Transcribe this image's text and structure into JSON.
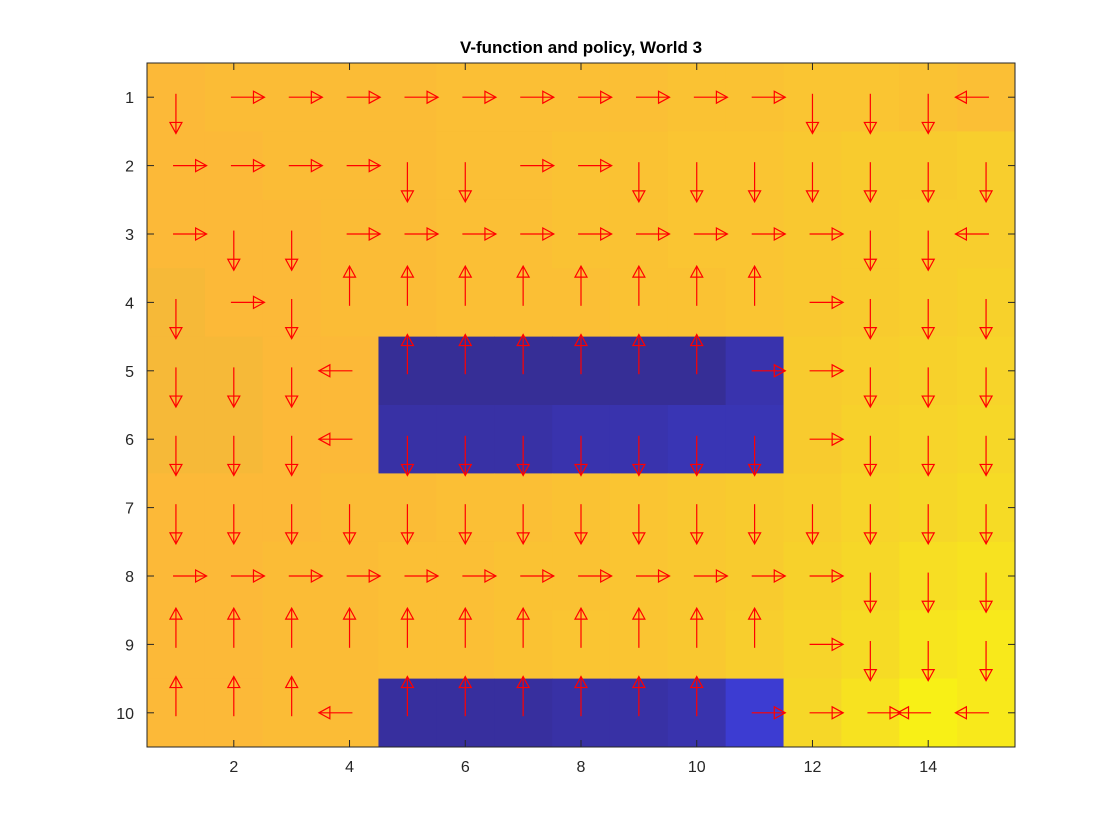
{
  "chart_data": {
    "type": "heatmap",
    "title": "V-function and policy, World 3",
    "xlabel": "",
    "ylabel": "",
    "xlim": [
      0.5,
      15.5
    ],
    "ylim": [
      0.5,
      10.5
    ],
    "y_reversed": true,
    "x_ticks": [
      2,
      4,
      6,
      8,
      10,
      12,
      14
    ],
    "y_ticks": [
      1,
      2,
      3,
      4,
      5,
      6,
      7,
      8,
      9,
      10
    ],
    "x_tick_labels": [
      "2",
      "4",
      "6",
      "8",
      "10",
      "12",
      "14"
    ],
    "y_tick_labels": [
      "1",
      "2",
      "3",
      "4",
      "5",
      "6",
      "7",
      "8",
      "9",
      "10"
    ],
    "colormap": "parula",
    "value_range": [
      0,
      1
    ],
    "values": [
      [
        0.8,
        0.81,
        0.81,
        0.81,
        0.81,
        0.82,
        0.82,
        0.82,
        0.82,
        0.83,
        0.83,
        0.84,
        0.84,
        0.83,
        0.82
      ],
      [
        0.8,
        0.8,
        0.81,
        0.81,
        0.81,
        0.82,
        0.82,
        0.83,
        0.83,
        0.84,
        0.84,
        0.85,
        0.86,
        0.86,
        0.87
      ],
      [
        0.8,
        0.8,
        0.8,
        0.81,
        0.81,
        0.82,
        0.82,
        0.83,
        0.83,
        0.84,
        0.84,
        0.85,
        0.86,
        0.87,
        0.87
      ],
      [
        0.79,
        0.8,
        0.8,
        0.81,
        0.81,
        0.82,
        0.82,
        0.82,
        0.83,
        0.83,
        0.84,
        0.85,
        0.86,
        0.87,
        0.88
      ],
      [
        0.79,
        0.79,
        0.8,
        0.8,
        0.02,
        0.02,
        0.02,
        0.02,
        0.02,
        0.02,
        0.05,
        0.86,
        0.87,
        0.88,
        0.89
      ],
      [
        0.79,
        0.79,
        0.8,
        0.8,
        0.04,
        0.04,
        0.04,
        0.05,
        0.05,
        0.06,
        0.06,
        0.86,
        0.88,
        0.89,
        0.9
      ],
      [
        0.8,
        0.8,
        0.8,
        0.81,
        0.81,
        0.82,
        0.82,
        0.83,
        0.84,
        0.85,
        0.86,
        0.87,
        0.89,
        0.9,
        0.91
      ],
      [
        0.8,
        0.8,
        0.81,
        0.81,
        0.82,
        0.82,
        0.83,
        0.83,
        0.84,
        0.85,
        0.86,
        0.88,
        0.9,
        0.92,
        0.93
      ],
      [
        0.8,
        0.8,
        0.81,
        0.81,
        0.82,
        0.82,
        0.83,
        0.84,
        0.84,
        0.85,
        0.87,
        0.89,
        0.91,
        0.94,
        0.95
      ],
      [
        0.8,
        0.8,
        0.81,
        0.81,
        0.03,
        0.03,
        0.03,
        0.04,
        0.04,
        0.05,
        0.1,
        0.9,
        0.93,
        0.97,
        0.95
      ]
    ],
    "policy_legend": {
      "U": "up",
      "D": "down",
      "L": "left",
      "R": "right"
    },
    "policy": [
      [
        "D",
        "R",
        "R",
        "R",
        "R",
        "R",
        "R",
        "R",
        "R",
        "R",
        "R",
        "D",
        "D",
        "D",
        "L"
      ],
      [
        "R",
        "R",
        "R",
        "R",
        "D",
        "D",
        "R",
        "R",
        "D",
        "D",
        "D",
        "D",
        "D",
        "D",
        "D"
      ],
      [
        "R",
        "D",
        "D",
        "R",
        "R",
        "R",
        "R",
        "R",
        "R",
        "R",
        "R",
        "R",
        "D",
        "D",
        "L"
      ],
      [
        "D",
        "R",
        "D",
        "U",
        "U",
        "U",
        "U",
        "U",
        "U",
        "U",
        "U",
        "R",
        "D",
        "D",
        "D"
      ],
      [
        "D",
        "D",
        "D",
        "L",
        "U",
        "U",
        "U",
        "U",
        "U",
        "U",
        "R",
        "R",
        "D",
        "D",
        "D"
      ],
      [
        "D",
        "D",
        "D",
        "L",
        "D",
        "D",
        "D",
        "D",
        "D",
        "D",
        "D",
        "R",
        "D",
        "D",
        "D"
      ],
      [
        "D",
        "D",
        "D",
        "D",
        "D",
        "D",
        "D",
        "D",
        "D",
        "D",
        "D",
        "D",
        "D",
        "D",
        "D"
      ],
      [
        "R",
        "R",
        "R",
        "R",
        "R",
        "R",
        "R",
        "R",
        "R",
        "R",
        "R",
        "R",
        "D",
        "D",
        "D"
      ],
      [
        "U",
        "U",
        "U",
        "U",
        "U",
        "U",
        "U",
        "U",
        "U",
        "U",
        "U",
        "R",
        "D",
        "D",
        "D"
      ],
      [
        "U",
        "U",
        "U",
        "L",
        "U",
        "U",
        "U",
        "U",
        "U",
        "U",
        "R",
        "R",
        "R",
        "L",
        "L"
      ]
    ],
    "arrow_color": "#ff0000",
    "axes_border_color": "#262626",
    "grid": false,
    "legend": "none"
  }
}
